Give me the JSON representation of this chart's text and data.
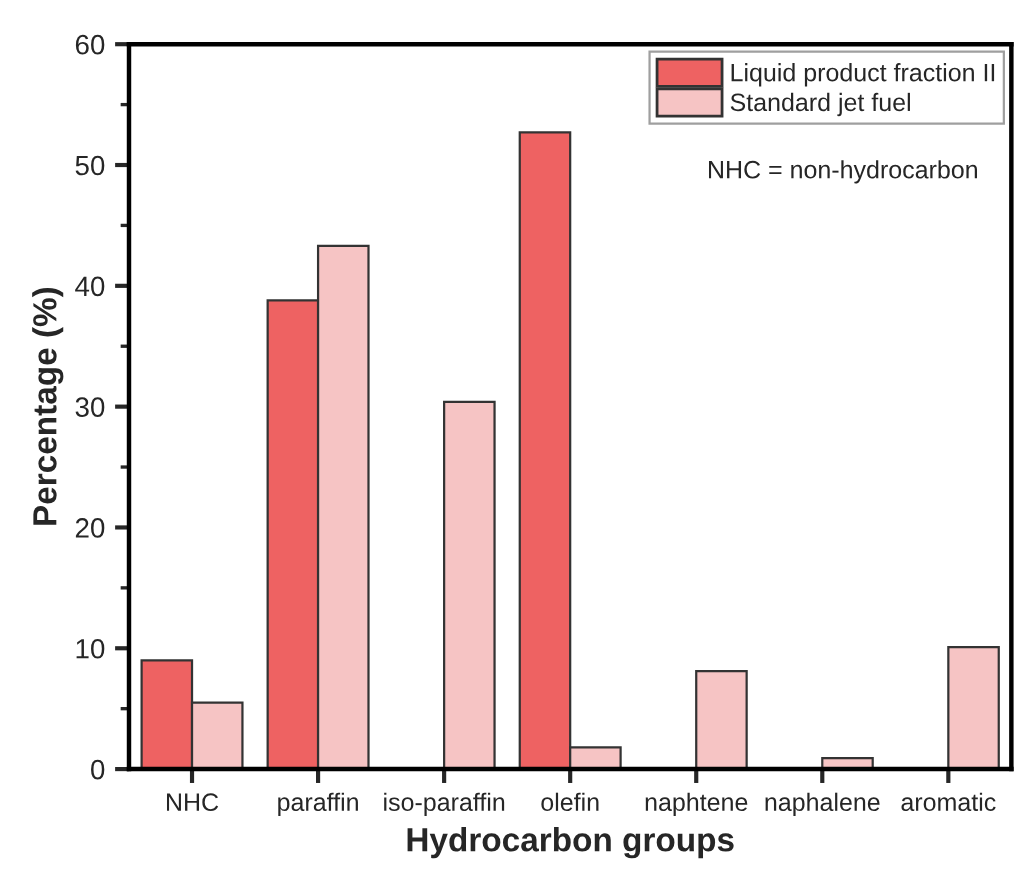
{
  "chart_data": {
    "type": "bar",
    "xlabel": "Hydrocarbon groups",
    "ylabel": "Percentage (%)",
    "categories": [
      "NHC",
      "paraffin",
      "iso-paraffin",
      "olefin",
      "naphtene",
      "naphalene",
      "aromatic"
    ],
    "series": [
      {
        "name": "Liquid product fraction II",
        "color": "#ee6262",
        "values": [
          9.0,
          38.8,
          null,
          52.7,
          null,
          null,
          null
        ]
      },
      {
        "name": "Standard jet fuel",
        "color": "#f6c4c4",
        "values": [
          5.5,
          43.3,
          30.4,
          1.8,
          8.1,
          0.9,
          10.1
        ]
      }
    ],
    "ylim": [
      0,
      60
    ],
    "yticks": [
      0,
      10,
      20,
      30,
      40,
      50,
      60
    ],
    "grid": false,
    "legend": "top right",
    "annotations": [
      "NHC = non-hydrocarbon"
    ]
  }
}
